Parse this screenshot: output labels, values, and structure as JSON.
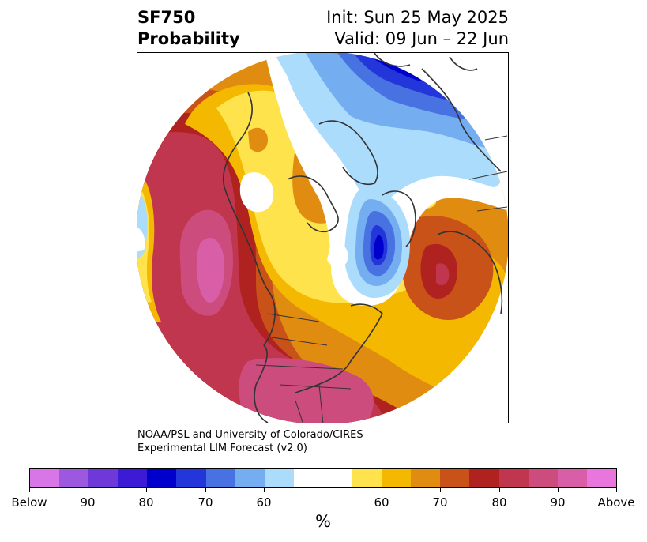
{
  "title": {
    "line1_left": "SF750",
    "line2_left": "Probability",
    "line1_right": "Init: Sun 25 May 2025",
    "line2_right": "Valid: 09 Jun – 22 Jun"
  },
  "credit": {
    "line1": "NOAA/PSL and University of Colorado/CIRES",
    "line2": "Experimental LIM Forecast (v2.0)"
  },
  "colorbar": {
    "unit_label": "%",
    "colors": [
      "#d876e8",
      "#9d58e0",
      "#6e39d8",
      "#3d1bd6",
      "#0000cd",
      "#2236d9",
      "#4872e2",
      "#74aef0",
      "#acdcfb",
      "#ffffff",
      "#ffffff",
      "#ffe34d",
      "#f5b800",
      "#e08c10",
      "#c85218",
      "#b0221f",
      "#c0364e",
      "#cc4c7d",
      "#d85ea8",
      "#e876dc"
    ],
    "tick_labels": [
      "Below",
      "90",
      "80",
      "70",
      "60",
      "60",
      "70",
      "80",
      "90",
      "Above"
    ]
  },
  "map": {
    "projection": "north-polar-stereographic",
    "colors": {
      "above_high": "#d85ea8",
      "above_mid": "#c0364e",
      "above_red": "#b0221f",
      "above_rust": "#c85218",
      "above_orange": "#e08c10",
      "above_gold": "#f5b800",
      "above_yellow": "#ffe34d",
      "below_light": "#acdcfb",
      "below_sky": "#74aef0",
      "below_mid": "#4872e2",
      "below_blue": "#2236d9",
      "below_deep": "#0000cd",
      "coastline": "#333333"
    }
  }
}
